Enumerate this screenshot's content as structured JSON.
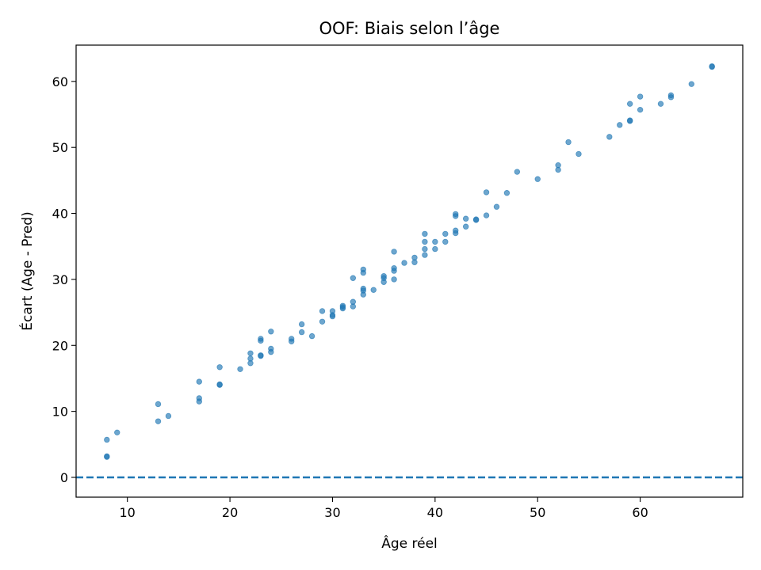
{
  "chart_data": {
    "type": "scatter",
    "title": "OOF: Biais selon l’âge",
    "xlabel": "Âge réel",
    "ylabel": "Écart (Age - Pred)",
    "xlim": [
      5,
      70
    ],
    "ylim": [
      -3,
      65.5
    ],
    "xticks": [
      10,
      20,
      30,
      40,
      50,
      60
    ],
    "yticks": [
      0,
      10,
      20,
      30,
      40,
      50,
      60
    ],
    "grid": false,
    "reference_line": {
      "y": 0,
      "style": "dashed",
      "color": "#1f77b4"
    },
    "series": [
      {
        "name": "OOF",
        "color": "#1f77b4",
        "points": [
          [
            8,
            5.7
          ],
          [
            8,
            3.1
          ],
          [
            8,
            3.2
          ],
          [
            9,
            6.8
          ],
          [
            13,
            11.1
          ],
          [
            13,
            8.5
          ],
          [
            14,
            9.3
          ],
          [
            17,
            14.5
          ],
          [
            17,
            12.0
          ],
          [
            17,
            11.5
          ],
          [
            19,
            16.7
          ],
          [
            19,
            14.0
          ],
          [
            19,
            14.1
          ],
          [
            21,
            16.4
          ],
          [
            22,
            18.8
          ],
          [
            22,
            18.0
          ],
          [
            22,
            17.3
          ],
          [
            23,
            21.0
          ],
          [
            23,
            20.7
          ],
          [
            23,
            18.5
          ],
          [
            23,
            18.4
          ],
          [
            24,
            22.1
          ],
          [
            24,
            19.5
          ],
          [
            24,
            19.0
          ],
          [
            26,
            21.0
          ],
          [
            26,
            20.6
          ],
          [
            27,
            23.2
          ],
          [
            27,
            22.0
          ],
          [
            28,
            21.4
          ],
          [
            29,
            25.2
          ],
          [
            29,
            23.6
          ],
          [
            30,
            25.2
          ],
          [
            30,
            24.6
          ],
          [
            30,
            24.4
          ],
          [
            31,
            26.0
          ],
          [
            31,
            25.6
          ],
          [
            31,
            25.8
          ],
          [
            32,
            30.2
          ],
          [
            32,
            26.6
          ],
          [
            32,
            25.9
          ],
          [
            33,
            31.5
          ],
          [
            33,
            31.0
          ],
          [
            33,
            28.6
          ],
          [
            33,
            28.3
          ],
          [
            33,
            27.7
          ],
          [
            34,
            28.4
          ],
          [
            35,
            30.5
          ],
          [
            35,
            30.2
          ],
          [
            35,
            29.6
          ],
          [
            36,
            34.2
          ],
          [
            36,
            31.7
          ],
          [
            36,
            31.3
          ],
          [
            36,
            30.0
          ],
          [
            37,
            32.5
          ],
          [
            38,
            33.3
          ],
          [
            38,
            32.6
          ],
          [
            39,
            36.9
          ],
          [
            39,
            35.7
          ],
          [
            39,
            34.6
          ],
          [
            39,
            33.7
          ],
          [
            40,
            35.7
          ],
          [
            40,
            34.6
          ],
          [
            41,
            36.9
          ],
          [
            41,
            35.7
          ],
          [
            42,
            39.9
          ],
          [
            42,
            39.6
          ],
          [
            42,
            37.4
          ],
          [
            42,
            37.0
          ],
          [
            43,
            39.2
          ],
          [
            43,
            38.0
          ],
          [
            44,
            39.1
          ],
          [
            44,
            39.0
          ],
          [
            45,
            43.2
          ],
          [
            45,
            39.7
          ],
          [
            46,
            41.0
          ],
          [
            47,
            43.1
          ],
          [
            48,
            46.3
          ],
          [
            50,
            45.2
          ],
          [
            52,
            47.3
          ],
          [
            52,
            46.6
          ],
          [
            53,
            50.8
          ],
          [
            54,
            49.0
          ],
          [
            57,
            51.6
          ],
          [
            58,
            53.4
          ],
          [
            59,
            56.6
          ],
          [
            59,
            54.1
          ],
          [
            59,
            54.0
          ],
          [
            60,
            57.7
          ],
          [
            60,
            55.7
          ],
          [
            62,
            56.6
          ],
          [
            63,
            57.9
          ],
          [
            63,
            57.6
          ],
          [
            65,
            59.6
          ],
          [
            67,
            62.3
          ],
          [
            67,
            62.2
          ]
        ]
      }
    ]
  }
}
